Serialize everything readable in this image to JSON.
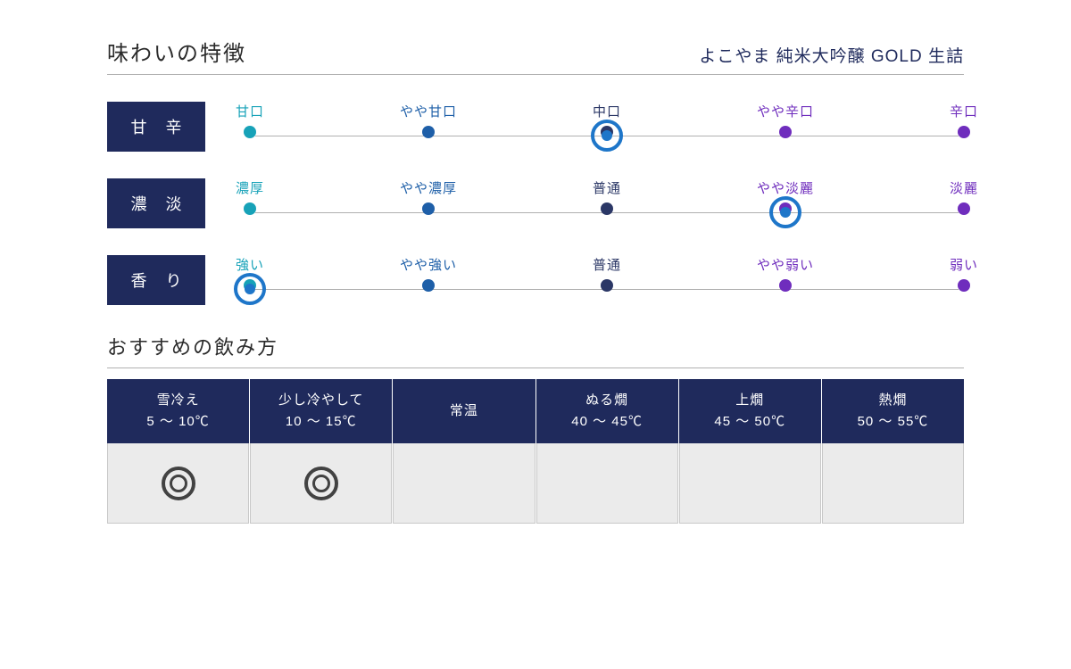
{
  "colors": {
    "navy": "#1f2a5c",
    "ring": "#1e76c9",
    "rec_ring": "#424242",
    "body_bg": "#ebebeb",
    "line": "#b0b0b0",
    "text_dark": "#2b2b2b"
  },
  "taste_section": {
    "title": "味わいの特徴",
    "product": "よこやま 純米大吟醸 GOLD 生詰"
  },
  "scale_positions_pct": [
    0,
    25,
    50,
    75,
    100
  ],
  "point_colors": [
    "#17a2b8",
    "#1e5fa8",
    "#2b3766",
    "#6f2dbd",
    "#6f2dbd"
  ],
  "taste_rows": [
    {
      "label": "甘 辛",
      "points": [
        "甘口",
        "やや甘口",
        "中口",
        "やや辛口",
        "辛口"
      ],
      "selected_index": 2
    },
    {
      "label": "濃 淡",
      "points": [
        "濃厚",
        "やや濃厚",
        "普通",
        "やや淡麗",
        "淡麗"
      ],
      "selected_index": 3
    },
    {
      "label": "香 り",
      "points": [
        "強い",
        "やや強い",
        "普通",
        "やや弱い",
        "弱い"
      ],
      "selected_index": 0
    }
  ],
  "drink_section": {
    "title": "おすすめの飲み方"
  },
  "drink_cols": [
    {
      "name": "雪冷え",
      "temp": "5 〜 10℃",
      "recommended": true
    },
    {
      "name": "少し冷やして",
      "temp": "10 〜 15℃",
      "recommended": true
    },
    {
      "name": "常温",
      "temp": "",
      "recommended": false
    },
    {
      "name": "ぬる燗",
      "temp": "40 〜 45℃",
      "recommended": false
    },
    {
      "name": "上燗",
      "temp": "45 〜 50℃",
      "recommended": false
    },
    {
      "name": "熱燗",
      "temp": "50 〜 55℃",
      "recommended": false
    }
  ]
}
